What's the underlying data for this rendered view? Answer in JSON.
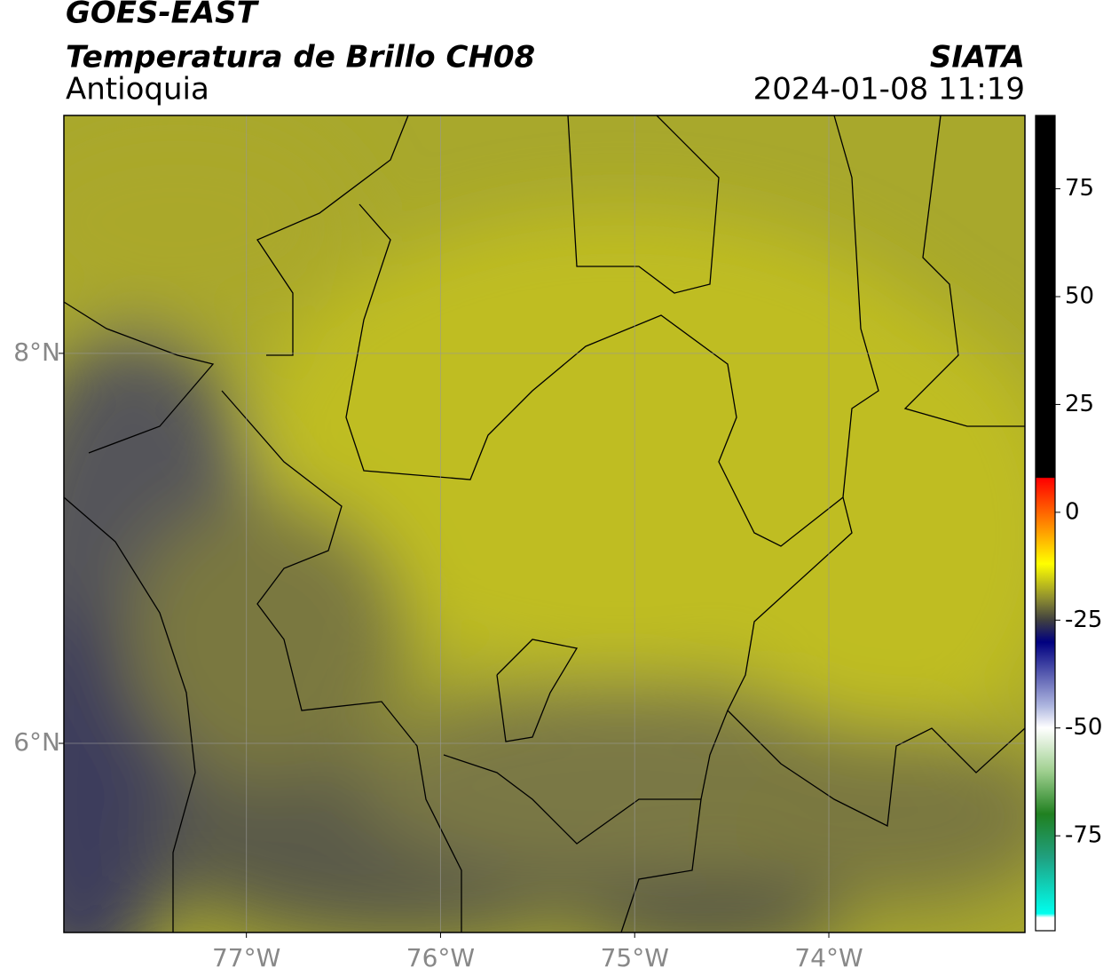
{
  "header": {
    "title": "GOES-EAST",
    "subtitle": "Temperatura de Brillo CH08",
    "region": "Antioquia",
    "source": "SIATA",
    "timestamp": "2024-01-08 11:19"
  },
  "map": {
    "lon_range": [
      -77.94,
      -72.99
    ],
    "lat_range": [
      5.03,
      9.22
    ],
    "lon_ticks": [
      {
        "value": -77,
        "label": "77°W"
      },
      {
        "value": -76,
        "label": "76°W"
      },
      {
        "value": -75,
        "label": "75°W"
      },
      {
        "value": -74,
        "label": "74°W"
      }
    ],
    "lat_ticks": [
      {
        "value": 8,
        "label": "8°N"
      },
      {
        "value": 6,
        "label": "6°N"
      }
    ]
  },
  "colorbar": {
    "range": [
      -97,
      92
    ],
    "ticks": [
      75,
      50,
      25,
      0,
      -25,
      -50,
      -75
    ]
  }
}
